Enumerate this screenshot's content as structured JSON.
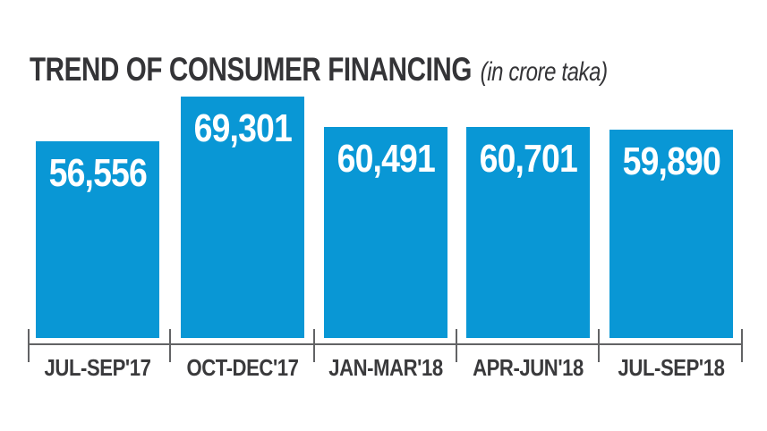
{
  "title": "TREND OF CONSUMER FINANCING",
  "subtitle": "(in crore taka)",
  "colors": {
    "bar": "#0997d5",
    "title_text": "#343437",
    "category_text": "#3a3a3c",
    "value_text": "#ffffff",
    "axis": "#626365",
    "background": "#ffffff"
  },
  "chart_data": {
    "type": "bar",
    "title": "TREND OF CONSUMER FINANCING",
    "subtitle": "(in crore taka)",
    "unit": "crore taka",
    "categories": [
      "JUL-SEP'17",
      "OCT-DEC'17",
      "JAN-MAR'18",
      "APR-JUN'18",
      "JUL-SEP'18"
    ],
    "values": [
      56556,
      69301,
      60491,
      60701,
      59890
    ],
    "value_labels": [
      "56,556",
      "69,301",
      "60,491",
      "60,701",
      "59,890"
    ],
    "ylim": [
      0,
      69301
    ],
    "grid": false,
    "legend": false,
    "value_label_position": "inside-top",
    "category_label_position": "below-axis"
  }
}
